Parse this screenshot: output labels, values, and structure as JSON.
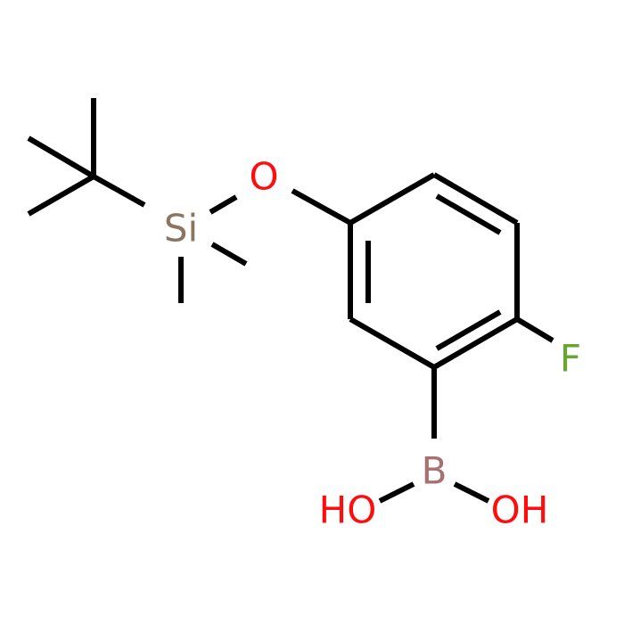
{
  "atoms": [
    {
      "label": "O"
    },
    {
      "label": "Si"
    },
    {
      "label": "F"
    },
    {
      "label": "B"
    },
    {
      "label": "HO"
    },
    {
      "label": "OH"
    }
  ]
}
